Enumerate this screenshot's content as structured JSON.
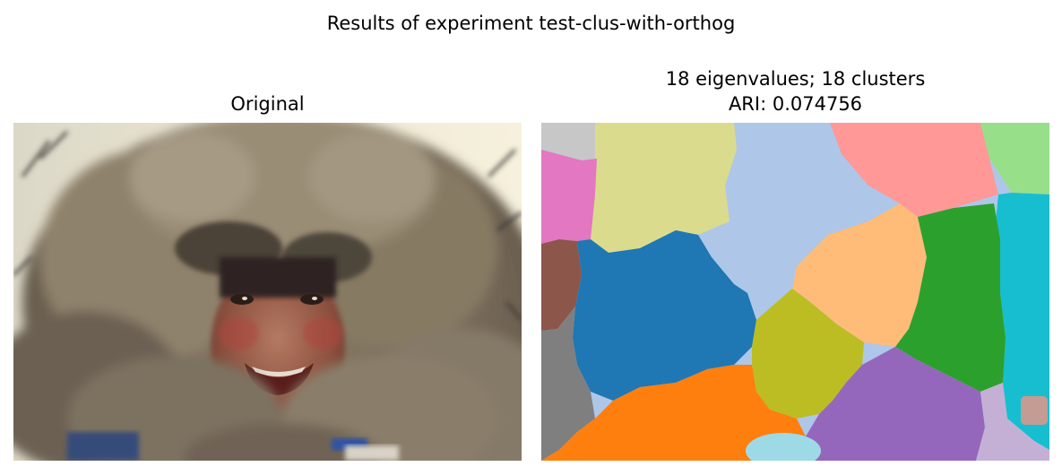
{
  "figure": {
    "title": "Results of experiment test-clus-with-orthog"
  },
  "left_panel": {
    "title": "Original"
  },
  "right_panel": {
    "title_line1": "18 eigenvalues; 18 clusters",
    "title_line2": "ARI: 0.074756"
  },
  "colors": {
    "background": "#ffffff",
    "cluster_palette": [
      "#c7c7c7",
      "#dbdb8d",
      "#aec7e8",
      "#ff9896",
      "#98df8a",
      "#e377c2",
      "#17becf",
      "#8c564b",
      "#1f77b4",
      "#ffbb78",
      "#2ca02c",
      "#bcbd22",
      "#7f7f7f",
      "#ff7f0e",
      "#9467bd",
      "#c5b0d5",
      "#9edae5",
      "#c49c94"
    ]
  }
}
